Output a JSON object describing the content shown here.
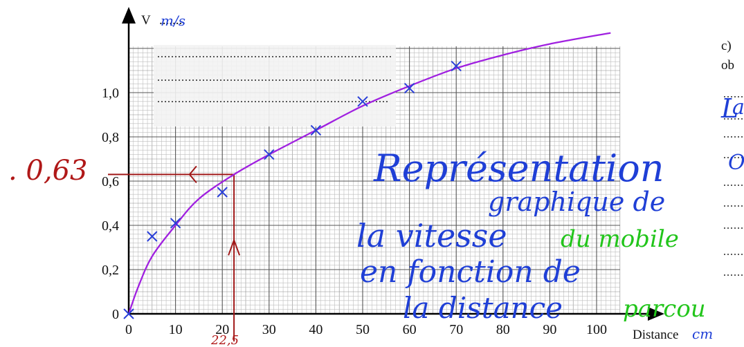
{
  "chart_data": {
    "type": "scatter",
    "xlabel": "Distance",
    "ylabel": "V",
    "xlim": [
      0,
      105
    ],
    "ylim": [
      0,
      1.2
    ],
    "x_ticks": [
      "0",
      "10",
      "20",
      "30",
      "40",
      "50",
      "60",
      "70",
      "80",
      "90",
      "100"
    ],
    "y_ticks": [
      "0",
      "0,2",
      "0,4",
      "0,6",
      "0,8",
      "1,0"
    ],
    "points": [
      {
        "x": 0,
        "y": 0
      },
      {
        "x": 5,
        "y": 0.35
      },
      {
        "x": 10,
        "y": 0.41
      },
      {
        "x": 20,
        "y": 0.55
      },
      {
        "x": 30,
        "y": 0.72
      },
      {
        "x": 40,
        "y": 0.83
      },
      {
        "x": 50,
        "y": 0.96
      },
      {
        "x": 60,
        "y": 1.02
      },
      {
        "x": 70,
        "y": 1.12
      }
    ],
    "fitted_curve": [
      {
        "x": 0,
        "y": 0
      },
      {
        "x": 2,
        "y": 0.12
      },
      {
        "x": 5,
        "y": 0.26
      },
      {
        "x": 10,
        "y": 0.4
      },
      {
        "x": 15,
        "y": 0.52
      },
      {
        "x": 22.5,
        "y": 0.63
      },
      {
        "x": 30,
        "y": 0.72
      },
      {
        "x": 40,
        "y": 0.83
      },
      {
        "x": 50,
        "y": 0.94
      },
      {
        "x": 60,
        "y": 1.03
      },
      {
        "x": 70,
        "y": 1.11
      },
      {
        "x": 80,
        "y": 1.17
      },
      {
        "x": 90,
        "y": 1.22
      },
      {
        "x": 103,
        "y": 1.27
      }
    ],
    "reading": {
      "x": 22.5,
      "y": 0.63,
      "label": ". 0,63"
    },
    "grid": true
  },
  "annotations": {
    "v_unit": "m/s",
    "x_unit": "cm",
    "x_hand_mark": "22,5",
    "title_lines": [
      "Représentation",
      "graphique de",
      "la vitesse",
      "en fonction de",
      "la distance"
    ],
    "green_words": [
      "du mobile",
      "parcou"
    ],
    "v_dots": "........"
  },
  "margin": {
    "heading_prefix": "c) ",
    "heading_cont": "ob",
    "hand_letters": [
      "L",
      "a",
      "O"
    ]
  },
  "colors": {
    "curve": "#a020e0",
    "points": "#2a3fd8",
    "reading": "#a01818",
    "handwriting": "#1f3fd6",
    "handwriting_green": "#22c51b"
  }
}
